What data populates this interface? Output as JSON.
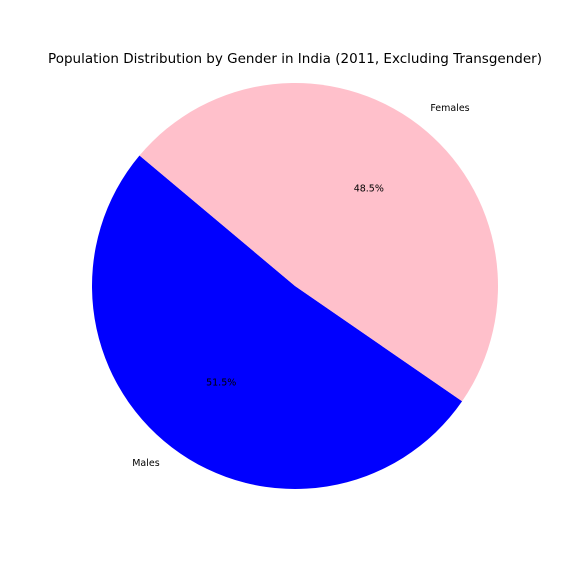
{
  "chart_data": {
    "type": "pie",
    "title": "Population Distribution by Gender in India (2011, Excluding Transgender)",
    "slices": [
      {
        "label": "Males",
        "value": 51.5,
        "pct_label": "51.5%",
        "color": "#0000ff"
      },
      {
        "label": "Females",
        "value": 48.5,
        "pct_label": "48.5%",
        "color": "#ffc0cb"
      }
    ],
    "start_angle_deg": 140,
    "direction": "counterclockwise"
  }
}
